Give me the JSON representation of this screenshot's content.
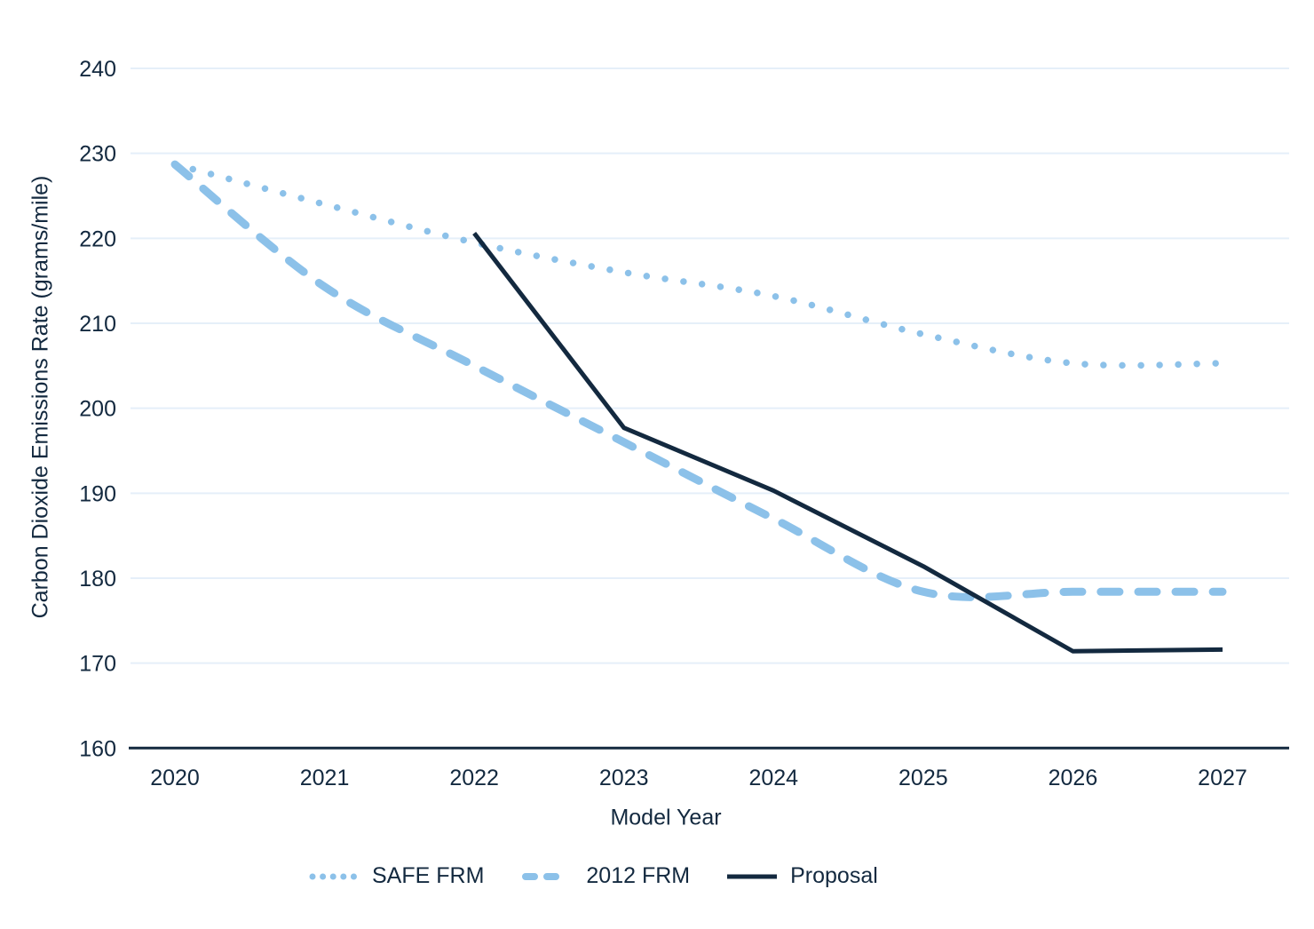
{
  "chart_data": {
    "type": "line",
    "title": "",
    "xlabel": "Model Year",
    "ylabel": "Carbon Dioxide Emissions Rate (grams/mile)",
    "x": [
      2020,
      2021,
      2022,
      2023,
      2024,
      2025,
      2026,
      2027
    ],
    "x_tick_labels": [
      "2020",
      "2021",
      "2022",
      "2023",
      "2024",
      "2025",
      "2026",
      "2027"
    ],
    "y_ticks": [
      160,
      170,
      180,
      190,
      200,
      210,
      220,
      230,
      240
    ],
    "ylim": [
      160,
      245
    ],
    "grid": true,
    "legend_position": "bottom",
    "series": [
      {
        "name": "SAFE FRM",
        "style": "dotted",
        "color": "#8CC1E9",
        "values": [
          228.7,
          224.0,
          219.5,
          216.0,
          213.2,
          208.7,
          205.3,
          205.3
        ]
      },
      {
        "name": "2012 FRM",
        "style": "dashed",
        "color": "#8CC1E9",
        "values": [
          228.7,
          214.3,
          205.0,
          196.0,
          187.0,
          178.4,
          178.4,
          178.4
        ]
      },
      {
        "name": "Proposal",
        "style": "solid",
        "color": "#13293F",
        "values": [
          null,
          null,
          220.6,
          197.7,
          190.3,
          181.4,
          171.4,
          171.6
        ]
      }
    ]
  },
  "colors": {
    "background": "#ffffff",
    "gridline": "#E5EFF9",
    "axis": "#13293F",
    "text": "#13293F",
    "light_blue": "#8CC1E9",
    "navy": "#13293F"
  }
}
